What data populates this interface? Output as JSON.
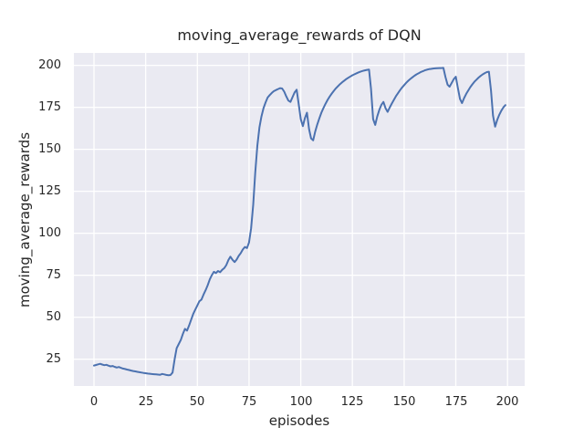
{
  "figure": {
    "background": "#ffffff"
  },
  "chart_data": {
    "type": "line",
    "title": "moving_average_rewards of DQN",
    "xlabel": "episodes",
    "ylabel": "moving_average_rewards",
    "xticks": [
      0,
      25,
      50,
      75,
      100,
      125,
      150,
      175,
      200
    ],
    "yticks": [
      25,
      50,
      75,
      100,
      125,
      150,
      175,
      200
    ],
    "xlim": [
      -9.7,
      208.3
    ],
    "ylim": [
      9,
      207.4
    ],
    "grid": true,
    "legend_position": "none",
    "style": {
      "axes_background": "#eaeaf2",
      "grid_color": "#ffffff",
      "line_color": "#4c72b0",
      "text_color": "#262626",
      "line_width": 2
    },
    "series": [
      {
        "name": "moving_average_rewards",
        "x": [
          0,
          1,
          2,
          3,
          4,
          5,
          6,
          7,
          8,
          9,
          10,
          11,
          12,
          13,
          14,
          15,
          16,
          17,
          18,
          19,
          20,
          21,
          22,
          23,
          24,
          25,
          26,
          27,
          28,
          29,
          30,
          31,
          32,
          33,
          34,
          35,
          36,
          37,
          38,
          39,
          40,
          41,
          42,
          43,
          44,
          45,
          46,
          47,
          48,
          49,
          50,
          51,
          52,
          53,
          54,
          55,
          56,
          57,
          58,
          59,
          60,
          61,
          62,
          63,
          64,
          65,
          66,
          67,
          68,
          69,
          70,
          71,
          72,
          73,
          74,
          75,
          76,
          77,
          78,
          79,
          80,
          81,
          82,
          83,
          84,
          85,
          86,
          87,
          88,
          89,
          90,
          91,
          92,
          93,
          94,
          95,
          96,
          97,
          98,
          99,
          100,
          101,
          102,
          103,
          104,
          105,
          106,
          107,
          108,
          109,
          110,
          111,
          112,
          113,
          114,
          115,
          116,
          117,
          118,
          119,
          120,
          121,
          122,
          123,
          124,
          125,
          126,
          127,
          128,
          129,
          130,
          131,
          132,
          133,
          134,
          135,
          136,
          137,
          138,
          139,
          140,
          141,
          142,
          143,
          144,
          145,
          146,
          147,
          148,
          149,
          150,
          151,
          152,
          153,
          154,
          155,
          156,
          157,
          158,
          159,
          160,
          161,
          162,
          163,
          164,
          165,
          166,
          167,
          168,
          169,
          170,
          171,
          172,
          173,
          174,
          175,
          176,
          177,
          178,
          179,
          180,
          181,
          182,
          183,
          184,
          185,
          186,
          187,
          188,
          189,
          190,
          191,
          192,
          193,
          194,
          195,
          196,
          197,
          198,
          199
        ],
        "y": [
          21.2,
          21.5,
          21.9,
          22.2,
          21.8,
          21.4,
          21.6,
          21.1,
          20.7,
          20.9,
          20.4,
          20.0,
          20.3,
          19.8,
          19.4,
          19.1,
          18.8,
          18.5,
          18.2,
          17.9,
          17.7,
          17.4,
          17.2,
          17.0,
          16.8,
          16.6,
          16.4,
          16.3,
          16.1,
          16.0,
          15.9,
          15.8,
          15.7,
          16.2,
          15.9,
          15.6,
          15.4,
          15.5,
          17.0,
          25.0,
          31.5,
          34.0,
          36.5,
          40.0,
          43.0,
          42.0,
          45.0,
          48.5,
          52.0,
          54.5,
          57.0,
          59.5,
          60.5,
          63.5,
          66.0,
          69.0,
          72.5,
          75.0,
          77.0,
          76.3,
          77.5,
          76.8,
          78.2,
          79.2,
          81.0,
          84.0,
          86.0,
          84.2,
          82.8,
          84.3,
          86.5,
          88.2,
          90.3,
          91.8,
          91.2,
          94.5,
          103.0,
          117.0,
          136.0,
          152.0,
          163.0,
          169.5,
          174.5,
          178.0,
          180.8,
          182.3,
          183.6,
          184.6,
          185.3,
          185.9,
          186.4,
          186.2,
          184.3,
          181.5,
          179.0,
          178.2,
          181.0,
          183.8,
          185.5,
          177.0,
          168.0,
          163.8,
          168.5,
          171.8,
          162.0,
          156.5,
          155.3,
          160.5,
          164.8,
          168.5,
          171.8,
          174.6,
          177.2,
          179.4,
          181.4,
          183.2,
          184.8,
          186.3,
          187.6,
          188.8,
          189.9,
          190.9,
          191.8,
          192.6,
          193.4,
          194.1,
          194.7,
          195.3,
          195.8,
          196.3,
          196.7,
          197.0,
          197.3,
          197.5,
          186.0,
          168.0,
          164.5,
          169.5,
          173.5,
          176.5,
          178.2,
          174.5,
          172.3,
          174.8,
          177.2,
          179.4,
          181.5,
          183.4,
          185.2,
          186.8,
          188.2,
          189.6,
          190.8,
          191.9,
          192.9,
          193.8,
          194.6,
          195.3,
          196.0,
          196.5,
          197.0,
          197.4,
          197.7,
          197.9,
          198.1,
          198.2,
          198.3,
          198.4,
          198.4,
          198.5,
          193.0,
          188.5,
          187.3,
          189.5,
          191.8,
          193.2,
          186.5,
          180.0,
          177.5,
          180.5,
          183.0,
          185.0,
          187.0,
          188.7,
          190.2,
          191.5,
          192.7,
          193.7,
          194.6,
          195.4,
          196.0,
          196.2,
          185.0,
          170.0,
          163.5,
          167.5,
          170.5,
          173.0,
          175.0,
          176.3
        ]
      }
    ]
  }
}
